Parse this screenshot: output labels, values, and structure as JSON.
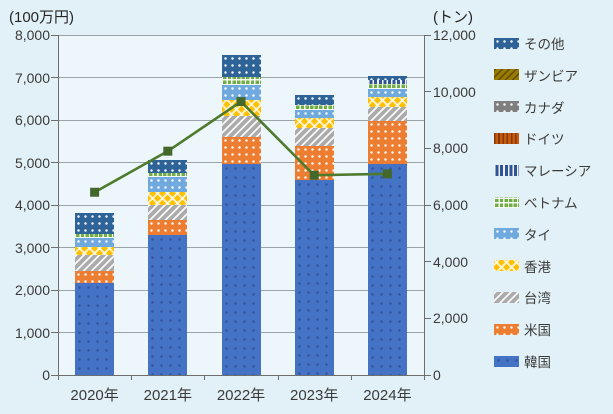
{
  "page": {
    "background_color": "#E2F1F7",
    "plot_background_color": "#EDF7FB",
    "grid_color": "#97A3A6",
    "axis_color": "#6E6E6E"
  },
  "chart_data": {
    "type": "bar",
    "subtype": "stacked-bars-with-line-overlay",
    "left_axis_title": "(100万円)",
    "right_axis_title": "(トン)",
    "categories": [
      "2020年",
      "2021年",
      "2022年",
      "2023年",
      "2024年"
    ],
    "left_axis": {
      "min": 0,
      "max": 8000,
      "tick_step": 1000,
      "tick_labels": [
        "0",
        "1,000",
        "2,000",
        "3,000",
        "4,000",
        "5,000",
        "6,000",
        "7,000",
        "8,000"
      ]
    },
    "right_axis": {
      "min": 0,
      "max": 12000,
      "tick_step": 2000,
      "tick_labels": [
        "0",
        "2,000",
        "4,000",
        "6,000",
        "8,000",
        "10,000",
        "12,000"
      ]
    },
    "grid": "horizontal",
    "legend_position": "right",
    "legend_order_top_to_bottom": [
      "その他",
      "ザンビア",
      "カナダ",
      "ドイツ",
      "マレーシア",
      "ベトナム",
      "タイ",
      "香港",
      "台湾",
      "米国",
      "韓国"
    ],
    "bar_series_bottom_to_top": [
      {
        "name": "韓国",
        "color": "#4472C4",
        "pattern": "dots-dark",
        "values": [
          2170,
          3290,
          4960,
          4590,
          4960
        ]
      },
      {
        "name": "米国",
        "color": "#ED7D31",
        "pattern": "dots-white",
        "values": [
          280,
          350,
          640,
          800,
          1020
        ]
      },
      {
        "name": "台湾",
        "color": "#ABABAB",
        "pattern": "diag-white",
        "values": [
          380,
          370,
          490,
          430,
          330
        ]
      },
      {
        "name": "香港",
        "color": "#FFC000",
        "pattern": "weave-white",
        "values": [
          180,
          300,
          380,
          220,
          240
        ]
      },
      {
        "name": "タイ",
        "color": "#6FA9DE",
        "pattern": "dots-white",
        "values": [
          220,
          340,
          350,
          200,
          170
        ]
      },
      {
        "name": "ベトナム",
        "color": "#70AD47",
        "pattern": "grid-white",
        "values": [
          90,
          110,
          200,
          120,
          120
        ]
      },
      {
        "name": "マレーシア",
        "color": "#2F5597",
        "pattern": "vert-white",
        "values": [
          0,
          0,
          0,
          0,
          110
        ]
      },
      {
        "name": "ドイツ",
        "color": "#C55A11",
        "pattern": "vert-dark",
        "values": [
          0,
          0,
          0,
          0,
          0
        ]
      },
      {
        "name": "カナダ",
        "color": "#7F7F7F",
        "pattern": "dots-white",
        "values": [
          0,
          0,
          0,
          0,
          0
        ]
      },
      {
        "name": "ザンビア",
        "color": "#9B7C00",
        "pattern": "diag-dark",
        "values": [
          0,
          0,
          0,
          0,
          0
        ]
      },
      {
        "name": "その他",
        "color": "#2D6396",
        "pattern": "dots-white",
        "values": [
          490,
          300,
          510,
          240,
          80
        ]
      }
    ],
    "bar_totals": [
      3810,
      5060,
      7530,
      6600,
      7030
    ],
    "line_series": {
      "axis": "right",
      "color": "#4E7A2E",
      "marker_color": "#44682C",
      "marker_shape": "square",
      "values": [
        6450,
        7900,
        9650,
        7050,
        7100
      ]
    }
  }
}
